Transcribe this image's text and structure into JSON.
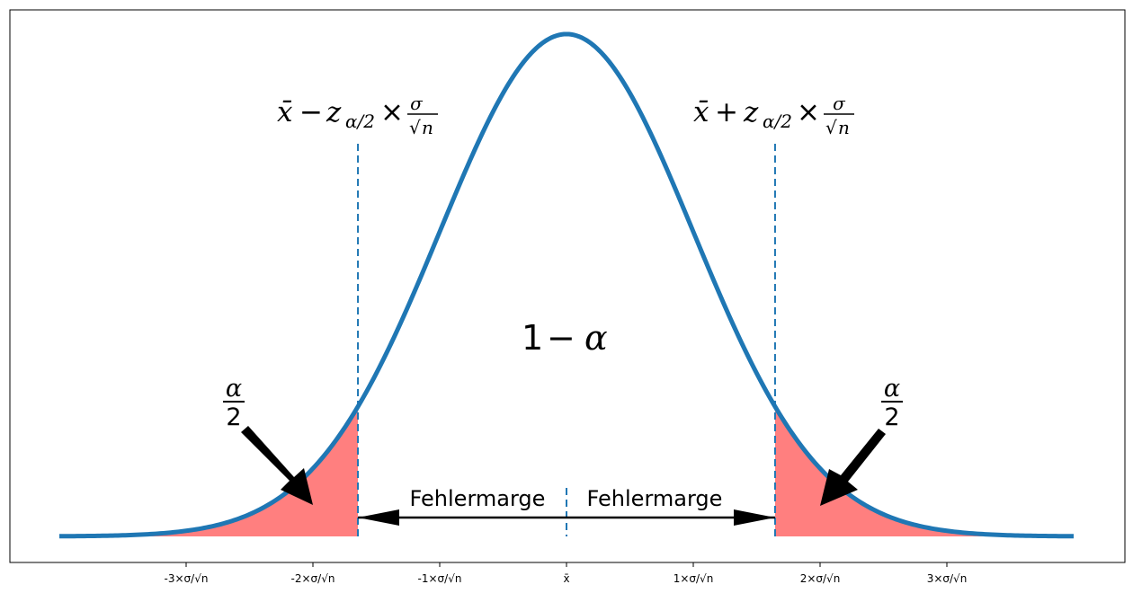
{
  "chart_data": {
    "type": "area",
    "distribution": "standard-normal",
    "x_range": [
      -4,
      4
    ],
    "critical_value": 1.645,
    "y_peak": 0.3989,
    "grid": false,
    "x_ticks": [
      {
        "value": -3,
        "label": "-3×σ/√n"
      },
      {
        "value": -2,
        "label": "-2×σ/√n"
      },
      {
        "value": -1,
        "label": "-1×σ/√n"
      },
      {
        "value": 0,
        "label": "x̄"
      },
      {
        "value": 1,
        "label": "1×σ/√n"
      },
      {
        "value": 2,
        "label": "2×σ/√n"
      },
      {
        "value": 3,
        "label": "3×σ/√n"
      }
    ],
    "annotations": {
      "lower_bound": "x̄ − z_{α/2} × σ/√n",
      "upper_bound": "x̄ + z_{α/2} × σ/√n",
      "center": "1 − α",
      "left_tail": "α/2",
      "right_tail": "α/2",
      "margin_left": "Fehlermarge",
      "margin_right": "Fehlermarge"
    },
    "colors": {
      "curve": "#1f77b4",
      "tail_fill": "#ff7f7f",
      "dashed": "#1f77b4",
      "arrow": "#000000"
    }
  }
}
